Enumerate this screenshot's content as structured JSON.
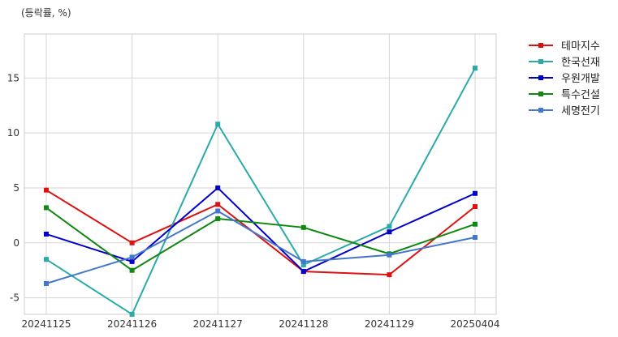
{
  "chart_data": {
    "type": "line",
    "unit_label": "(등락률, %)",
    "categories": [
      "20241125",
      "20241126",
      "20241127",
      "20241128",
      "20241129",
      "20250404"
    ],
    "ylim": [
      -6.5,
      19
    ],
    "yticks": [
      -5,
      0,
      5,
      10,
      15
    ],
    "grid": true,
    "legend_position": "outside-top-right",
    "series": [
      {
        "name": "테마지수",
        "color": "#dd1111",
        "values": [
          4.8,
          0.0,
          3.5,
          -2.6,
          -2.9,
          3.3
        ]
      },
      {
        "name": "한국선재",
        "color": "#2aaaa8",
        "values": [
          -1.5,
          -6.5,
          10.8,
          -2.0,
          1.5,
          15.9
        ]
      },
      {
        "name": "우원개발",
        "color": "#0000cc",
        "values": [
          0.8,
          -1.7,
          5.0,
          -2.6,
          1.0,
          4.5
        ]
      },
      {
        "name": "특수건설",
        "color": "#118811",
        "values": [
          3.2,
          -2.5,
          2.2,
          1.4,
          -1.0,
          1.7
        ]
      },
      {
        "name": "세명전기",
        "color": "#4477cc",
        "values": [
          -3.7,
          -1.3,
          2.9,
          -1.7,
          -1.1,
          0.5
        ]
      }
    ]
  }
}
